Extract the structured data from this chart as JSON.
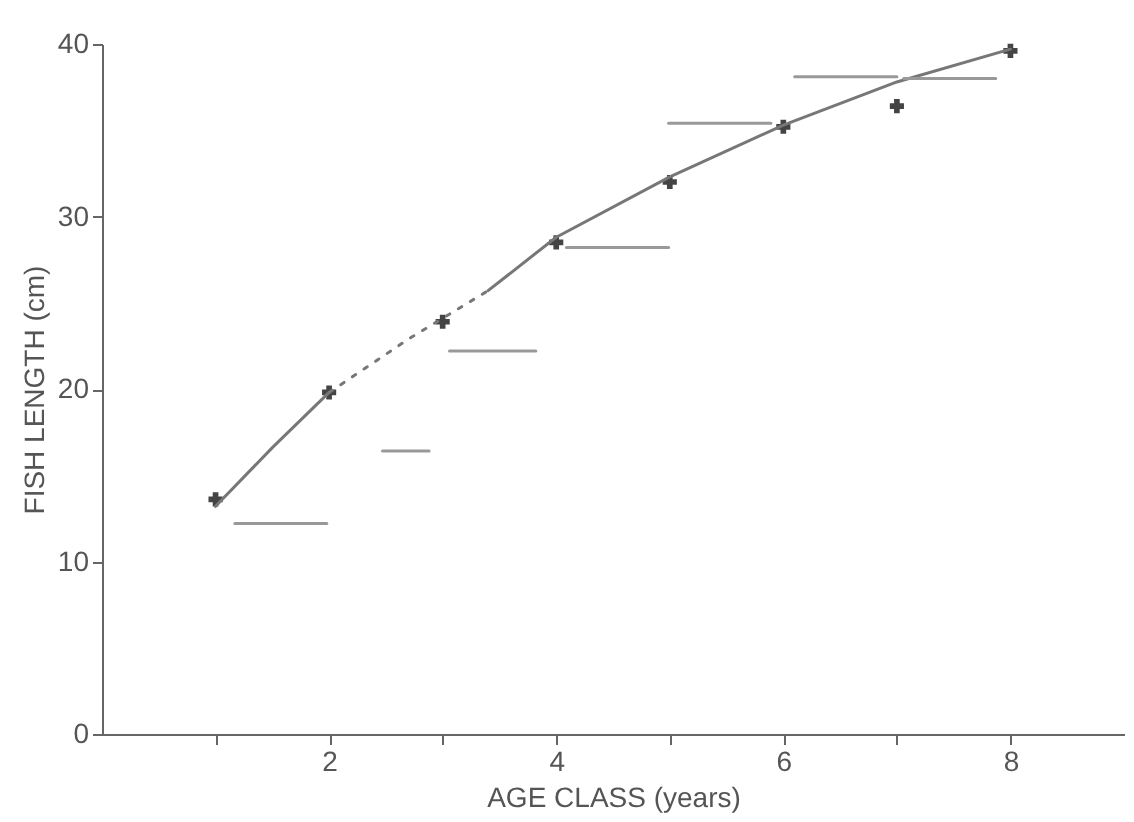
{
  "chart_data": {
    "type": "line",
    "xlabel": "AGE CLASS (years)",
    "ylabel": "FISH LENGTH (cm)",
    "xlim": [
      0,
      9
    ],
    "xticks": [
      {
        "value": 1,
        "label": null
      },
      2,
      {
        "value": 3,
        "label": null
      },
      4,
      {
        "value": 5,
        "label": null
      },
      6,
      {
        "value": 7,
        "label": null
      },
      8
    ],
    "ylim": [
      0,
      40
    ],
    "yticks": [
      0,
      10,
      20,
      30,
      40
    ],
    "grid": false,
    "series": [
      {
        "type": "scatter",
        "marker": "cross",
        "color": "#444444",
        "x": [
          1,
          2,
          3,
          4,
          5,
          6,
          7,
          8
        ],
        "values": [
          13.6,
          19.8,
          23.9,
          28.5,
          32.0,
          35.2,
          36.4,
          39.6
        ]
      },
      {
        "line_style": "solid",
        "color": "#777777",
        "x": [
          1,
          1.5,
          2
        ],
        "values": [
          13.2,
          16.6,
          19.8
        ]
      },
      {
        "line_style": "dotted",
        "color": "#777777",
        "x": [
          2,
          2.7,
          3.4
        ],
        "values": [
          19.8,
          22.9,
          25.7
        ]
      },
      {
        "line_style": "solid",
        "color": "#777777",
        "x": [
          3.4,
          4,
          5,
          6,
          7,
          8
        ],
        "values": [
          25.7,
          28.8,
          32.3,
          35.3,
          37.8,
          39.7
        ]
      },
      {
        "line_style": "solid",
        "color": "#999999",
        "x": [
          1.17,
          1.98
        ],
        "values": [
          12.2,
          12.2
        ]
      },
      {
        "line_style": "solid",
        "color": "#999999",
        "x": [
          2.47,
          2.88
        ],
        "values": [
          16.4,
          16.4
        ]
      },
      {
        "line_style": "solid",
        "color": "#999999",
        "x": [
          3.06,
          3.82
        ],
        "values": [
          22.2,
          22.2
        ]
      },
      {
        "line_style": "solid",
        "color": "#999999",
        "x": [
          4.09,
          4.99
        ],
        "values": [
          28.2,
          28.2
        ]
      },
      {
        "line_style": "solid",
        "color": "#999999",
        "x": [
          4.99,
          5.89
        ],
        "values": [
          35.4,
          35.4
        ]
      },
      {
        "line_style": "solid",
        "color": "#999999",
        "x": [
          6.1,
          7.0
        ],
        "values": [
          38.1,
          38.1
        ]
      },
      {
        "line_style": "solid",
        "color": "#999999",
        "x": [
          7.06,
          7.87
        ],
        "values": [
          38.0,
          38.0
        ]
      }
    ]
  }
}
